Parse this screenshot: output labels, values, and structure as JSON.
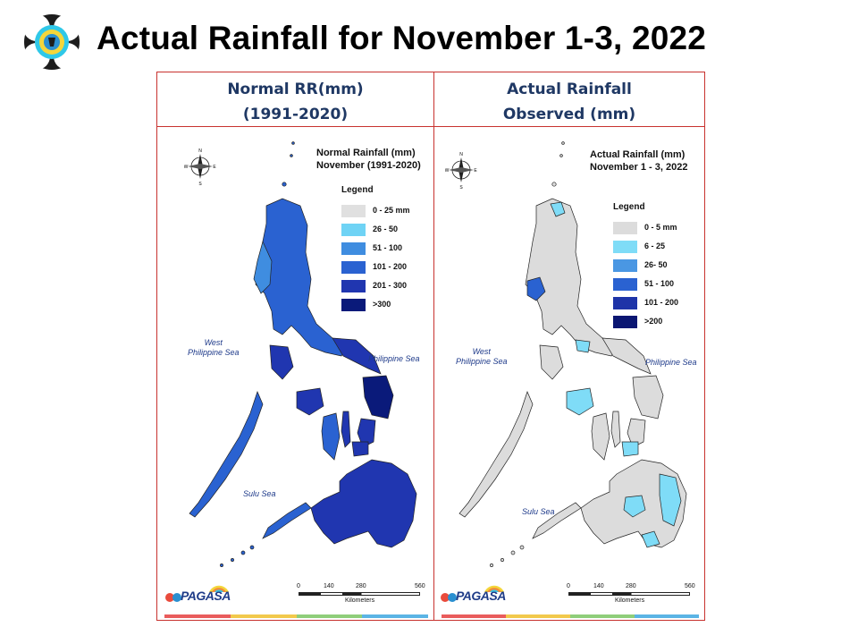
{
  "slide": {
    "title": "Actual Rainfall for November 1-3, 2022",
    "logo_icon": "pagasa-seal-icon"
  },
  "colors": {
    "panel_border": "#c8322f",
    "header_text": "#1f3864",
    "map_border": "#2b2b2b"
  },
  "panels": [
    {
      "header_line1": "Normal RR(mm)",
      "header_line2": "(1991-2020)",
      "map_title_line1": "Normal Rainfall (mm)",
      "map_title_line2": "November (1991-2020)",
      "legend_title": "Legend",
      "legend": [
        {
          "label": "0 - 25 mm",
          "color": "#e0e0e0"
        },
        {
          "label": "26 - 50",
          "color": "#6fd3f5"
        },
        {
          "label": "51 - 100",
          "color": "#3f8de0"
        },
        {
          "label": "101 - 200",
          "color": "#2a62d1"
        },
        {
          "label": "201 - 300",
          "color": "#2036b0"
        },
        {
          "label": ">300",
          "color": "#0a1a7a"
        }
      ],
      "sea_west": "West\nPhilippine Sea",
      "sea_east": "Philippine Sea",
      "sea_south": "Sulu Sea",
      "scale_ticks": [
        "0",
        "140",
        "280",
        "560"
      ],
      "scale_unit": "Kilometers",
      "agency": "PAGASA"
    },
    {
      "header_line1": "Actual Rainfall",
      "header_line2": "Observed (mm)",
      "map_title_line1": "Actual Rainfall (mm)",
      "map_title_line2": "November 1 - 3, 2022",
      "legend_title": "Legend",
      "legend": [
        {
          "label": "0 - 5 mm",
          "color": "#dcdcdc"
        },
        {
          "label": "6 - 25",
          "color": "#7fdcf7"
        },
        {
          "label": "26- 50",
          "color": "#4a97e3"
        },
        {
          "label": "51 - 100",
          "color": "#2a62d1"
        },
        {
          "label": "101 - 200",
          "color": "#1e34a8"
        },
        {
          "label": ">200",
          "color": "#0a1672"
        }
      ],
      "sea_west": "West\nPhilippine Sea",
      "sea_east": "Philippine Sea",
      "sea_south": "Sulu Sea",
      "scale_ticks": [
        "0",
        "140",
        "280",
        "560"
      ],
      "scale_unit": "Kilometers",
      "agency": "PAGASA"
    }
  ]
}
